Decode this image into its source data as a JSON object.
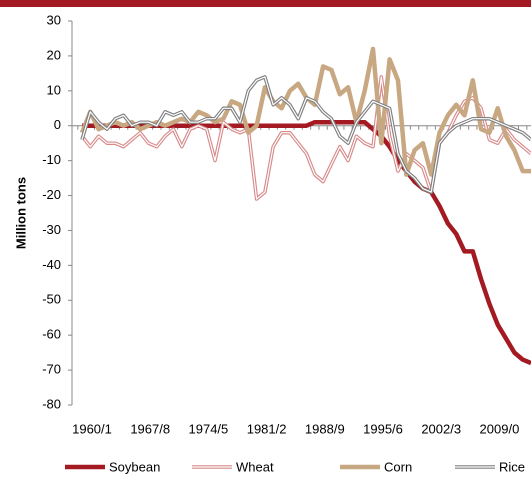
{
  "chart_data": {
    "type": "line",
    "y_label": "Million tons",
    "categories": [
      "1960/1",
      null,
      null,
      null,
      null,
      null,
      null,
      "1967/8",
      null,
      null,
      null,
      null,
      null,
      null,
      "1974/5",
      null,
      null,
      null,
      null,
      null,
      null,
      "1981/2",
      null,
      null,
      null,
      null,
      null,
      null,
      "1988/9",
      null,
      null,
      null,
      null,
      null,
      null,
      "1995/6",
      null,
      null,
      null,
      null,
      null,
      null,
      "2002/3",
      null,
      null,
      null,
      null,
      null,
      null,
      "2009/0",
      null,
      null,
      null,
      null,
      null
    ],
    "series": [
      {
        "name": "Soybean",
        "color": "#a31a22",
        "style": "solid",
        "values": [
          0,
          0,
          0,
          0,
          0,
          0,
          0,
          0,
          0,
          0,
          0,
          0,
          0,
          0,
          0,
          0,
          0,
          0,
          0,
          0,
          0,
          0,
          0,
          0,
          0,
          0,
          0,
          0,
          1,
          1,
          1,
          1,
          1,
          1,
          1,
          -1,
          -3,
          -6,
          -10,
          -13,
          -16,
          -18,
          -19,
          -23,
          -28,
          -31,
          -36,
          -36,
          -44,
          -51,
          -57,
          -61,
          -65,
          -67,
          -68
        ]
      },
      {
        "name": "Wheat",
        "color": "#d88a8a",
        "style": "double",
        "values": [
          -3,
          -6,
          -3,
          -5,
          -5,
          -6,
          -4,
          -2,
          -5,
          -6,
          -3,
          -1,
          -6,
          -1,
          0,
          -1,
          -10,
          1,
          -1,
          -2,
          -1,
          -21,
          -19,
          -6,
          -2,
          -2,
          -5,
          -8,
          -14,
          -16,
          -11,
          -6,
          -10,
          -3,
          -5,
          -6,
          14,
          -3,
          -13,
          -8,
          -10,
          -12,
          -19,
          -5,
          -2,
          3,
          7,
          8,
          5,
          -4,
          -5,
          -1,
          -4,
          -6,
          -8
        ]
      },
      {
        "name": "Corn",
        "color": "#c8a882",
        "style": "solid",
        "values": [
          -2,
          4,
          -1,
          0,
          1,
          0,
          1,
          -1,
          0,
          1,
          0,
          1,
          2,
          1,
          4,
          3,
          1,
          2,
          7,
          6,
          -2,
          0,
          11,
          7,
          5,
          10,
          12,
          8,
          6,
          17,
          16,
          9,
          11,
          1,
          10,
          22,
          -5,
          19,
          13,
          -14,
          -7,
          -5,
          -14,
          -2,
          3,
          6,
          3,
          13,
          -1,
          -2,
          5,
          -3,
          -7,
          -13,
          -13
        ]
      },
      {
        "name": "Rice",
        "color": "#808080",
        "style": "double",
        "values": [
          -4,
          4,
          1,
          -1,
          2,
          3,
          0,
          1,
          1,
          0,
          4,
          3,
          4,
          1,
          1,
          2,
          2,
          5,
          5,
          1,
          10,
          13,
          14,
          6,
          8,
          6,
          2,
          8,
          7,
          4,
          2,
          -3,
          -5,
          1,
          4,
          7,
          6,
          5,
          -8,
          -13,
          -15,
          -18,
          -19,
          -5,
          -2,
          0,
          1,
          2,
          2,
          2,
          1,
          0,
          -1,
          -2,
          -4
        ]
      }
    ],
    "ylim": [
      -80,
      30
    ],
    "yticks": [
      -80,
      -70,
      -60,
      -50,
      -40,
      -30,
      -20,
      -10,
      0,
      10,
      20,
      30
    ],
    "legend": "bottom"
  }
}
